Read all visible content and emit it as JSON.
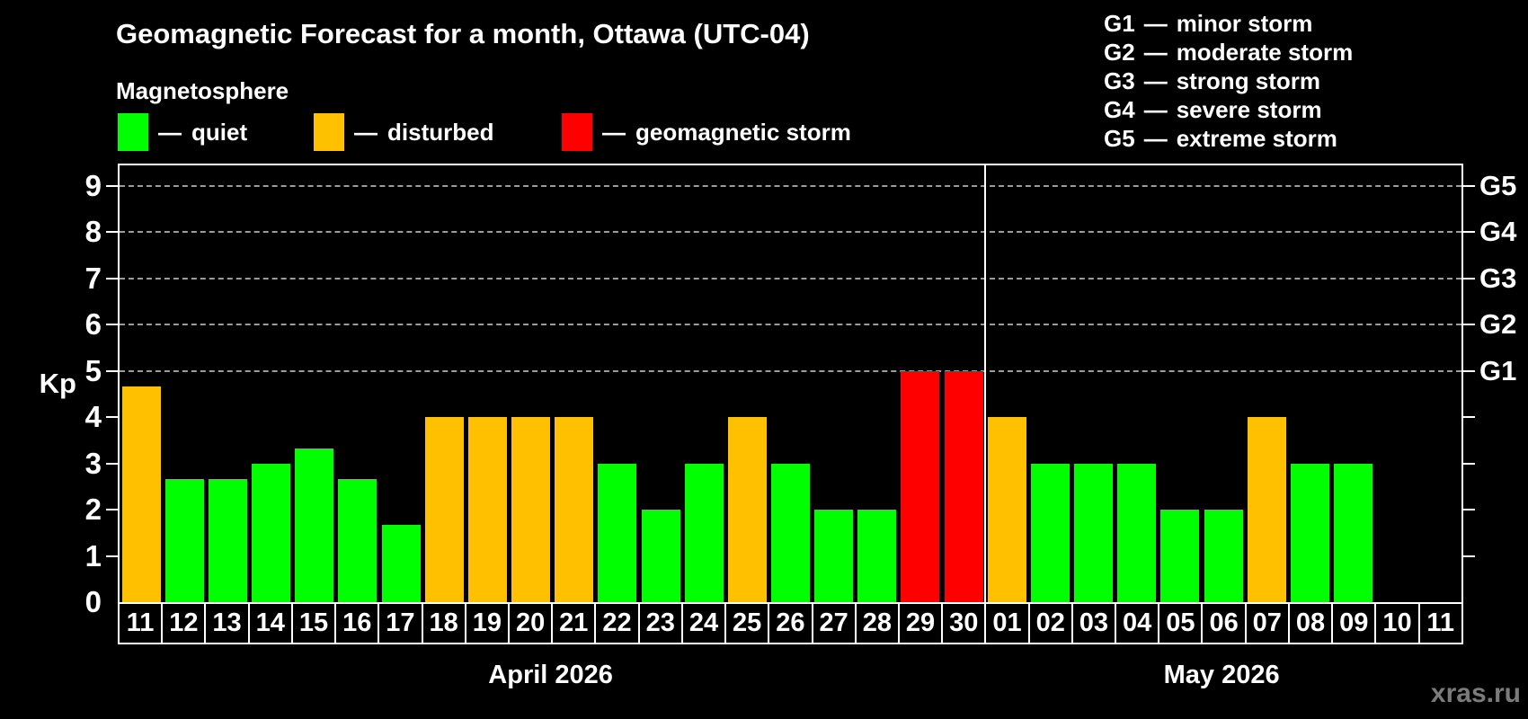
{
  "title": "Geomagnetic Forecast for a month, Ottawa (UTC-04)",
  "subtitle": "Magnetosphere",
  "separator": "—",
  "legend": {
    "items": [
      {
        "label": "quiet",
        "status": "quiet",
        "color": "#00ff00"
      },
      {
        "label": "disturbed",
        "status": "disturbed",
        "color": "#ffc000"
      },
      {
        "label": "geomagnetic storm",
        "status": "storm",
        "color": "#ff0000"
      }
    ]
  },
  "storm_scale_legend": [
    {
      "code": "G1",
      "label": "minor storm"
    },
    {
      "code": "G2",
      "label": "moderate storm"
    },
    {
      "code": "G3",
      "label": "strong storm"
    },
    {
      "code": "G4",
      "label": "severe storm"
    },
    {
      "code": "G5",
      "label": "extreme storm"
    }
  ],
  "watermark": "xras.ru",
  "chart_data": {
    "type": "bar",
    "title": "Geomagnetic Forecast for a month, Ottawa (UTC-04)",
    "ylabel": "Kp",
    "ylim": [
      0,
      9.44
    ],
    "yticks": [
      0,
      1,
      2,
      3,
      4,
      5,
      6,
      7,
      8,
      9
    ],
    "gridlines_at": [
      5,
      6,
      7,
      8,
      9
    ],
    "grid_style": "dashed, Kp 5-9 only",
    "legend_position": "top-left",
    "right_axis_labels": [
      {
        "kp": 5,
        "label": "G1"
      },
      {
        "kp": 6,
        "label": "G2"
      },
      {
        "kp": 7,
        "label": "G3"
      },
      {
        "kp": 8,
        "label": "G4"
      },
      {
        "kp": 9,
        "label": "G5"
      }
    ],
    "months": [
      {
        "label": "April 2026",
        "days": 20
      },
      {
        "label": "May 2026",
        "days": 11
      }
    ],
    "categories": [
      "11",
      "12",
      "13",
      "14",
      "15",
      "16",
      "17",
      "18",
      "19",
      "20",
      "21",
      "22",
      "23",
      "24",
      "25",
      "26",
      "27",
      "28",
      "29",
      "30",
      "01",
      "02",
      "03",
      "04",
      "05",
      "06",
      "07",
      "08",
      "09",
      "10",
      "11"
    ],
    "values": [
      4.67,
      2.67,
      2.67,
      3,
      3.33,
      2.67,
      1.67,
      4,
      4,
      4,
      4,
      3,
      2,
      3,
      4,
      3,
      2,
      2,
      5,
      5,
      4,
      3,
      3,
      3,
      2,
      2,
      4,
      3,
      3,
      null,
      null
    ],
    "statuses": [
      "disturbed",
      "quiet",
      "quiet",
      "quiet",
      "quiet",
      "quiet",
      "quiet",
      "disturbed",
      "disturbed",
      "disturbed",
      "disturbed",
      "quiet",
      "quiet",
      "quiet",
      "disturbed",
      "quiet",
      "quiet",
      "quiet",
      "storm",
      "storm",
      "disturbed",
      "quiet",
      "quiet",
      "quiet",
      "quiet",
      "quiet",
      "disturbed",
      "quiet",
      "quiet",
      null,
      null
    ],
    "status_colors": {
      "quiet": "#00ff00",
      "disturbed": "#ffc000",
      "storm": "#ff0000"
    }
  }
}
